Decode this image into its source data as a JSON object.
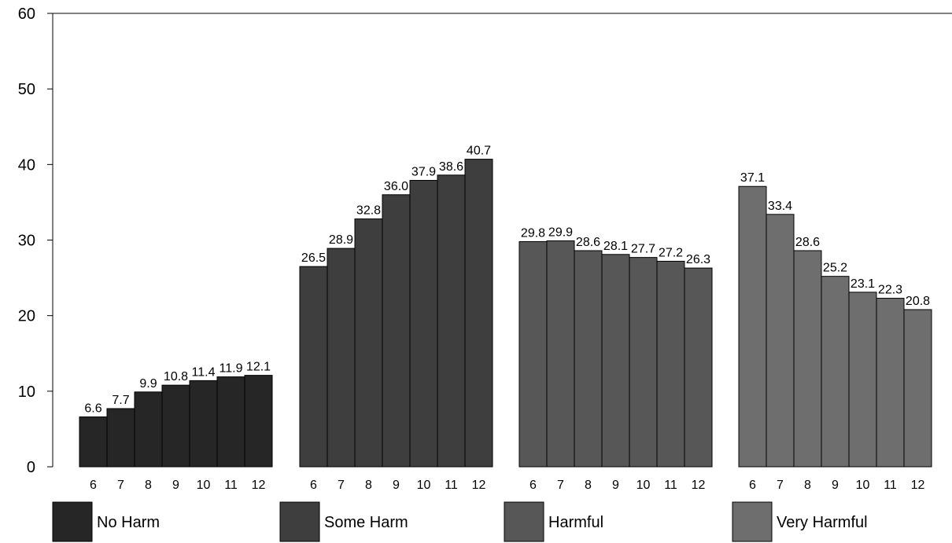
{
  "chart_data": {
    "type": "bar",
    "title": "",
    "xlabel": "",
    "ylabel": "",
    "ylim": [
      0,
      60
    ],
    "yticks": [
      0,
      10,
      20,
      30,
      40,
      50,
      60
    ],
    "grid": false,
    "legend_position": "bottom",
    "groups": [
      {
        "name": "No Harm",
        "color": "#262626",
        "categories": [
          "6",
          "7",
          "8",
          "9",
          "10",
          "11",
          "12"
        ],
        "values": [
          6.6,
          7.7,
          9.9,
          10.8,
          11.4,
          11.9,
          12.1
        ],
        "labels": [
          "6.6",
          "7.7",
          "9.9",
          "10.8",
          "11.4",
          "11.9",
          "12.1"
        ]
      },
      {
        "name": "Some Harm",
        "color": "#3e3e3e",
        "categories": [
          "6",
          "7",
          "8",
          "9",
          "10",
          "11",
          "12"
        ],
        "values": [
          26.5,
          28.9,
          32.8,
          36.0,
          37.9,
          38.6,
          40.7
        ],
        "labels": [
          "26.5",
          "28.9",
          "32.8",
          "36.0",
          "37.9",
          "38.6",
          "40.7"
        ]
      },
      {
        "name": "Harmful",
        "color": "#575757",
        "categories": [
          "6",
          "7",
          "8",
          "9",
          "10",
          "11",
          "12"
        ],
        "values": [
          29.8,
          29.9,
          28.6,
          28.1,
          27.7,
          27.2,
          26.3
        ],
        "labels": [
          "29.8",
          "29.9",
          "28.6",
          "28.1",
          "27.7",
          "27.2",
          "26.3"
        ]
      },
      {
        "name": "Very Harmful",
        "color": "#6e6e6e",
        "categories": [
          "6",
          "7",
          "8",
          "9",
          "10",
          "11",
          "12"
        ],
        "values": [
          37.1,
          33.4,
          28.6,
          25.2,
          23.1,
          22.3,
          20.8
        ],
        "labels": [
          "37.1",
          "33.4",
          "28.6",
          "25.2",
          "23.1",
          "22.3",
          "20.8"
        ]
      }
    ]
  }
}
